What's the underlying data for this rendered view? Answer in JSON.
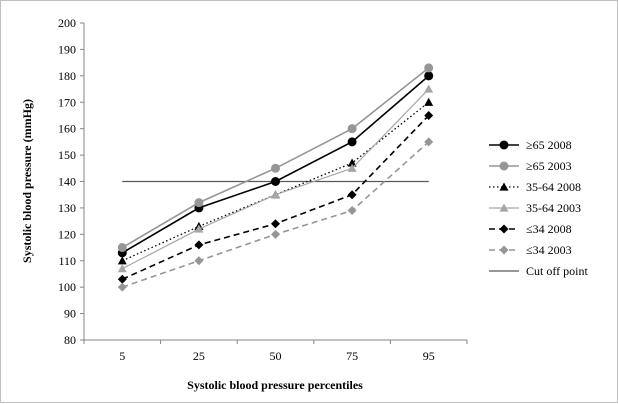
{
  "chart_data": {
    "type": "line",
    "title": "",
    "xlabel": "Systolic blood pressure percentiles",
    "ylabel": "Systolic blood pressure (mmHg)",
    "categories": [
      "5",
      "25",
      "50",
      "75",
      "95"
    ],
    "ylim": [
      80,
      200
    ],
    "yticks": [
      80,
      90,
      100,
      110,
      120,
      130,
      140,
      150,
      160,
      170,
      180,
      190,
      200
    ],
    "grid": false,
    "legend_position": "right",
    "series": [
      {
        "name": "≥65 2008",
        "values": [
          113,
          130,
          140,
          155,
          180
        ],
        "color": "#000000",
        "line": "solid",
        "marker": "circle"
      },
      {
        "name": "≥65 2003",
        "values": [
          115,
          132,
          145,
          160,
          183
        ],
        "color": "#969696",
        "line": "solid",
        "marker": "circle"
      },
      {
        "name": "35-64 2008",
        "values": [
          110,
          123,
          135,
          147,
          170
        ],
        "color": "#000000",
        "line": "dotted",
        "marker": "triangle"
      },
      {
        "name": "35-64 2003",
        "values": [
          107,
          122,
          135,
          145,
          175
        ],
        "color": "#a6a6a6",
        "line": "solid-thin",
        "marker": "triangle"
      },
      {
        "name": "≤34 2008",
        "values": [
          103,
          116,
          124,
          135,
          165
        ],
        "color": "#000000",
        "line": "dashed",
        "marker": "diamond"
      },
      {
        "name": "≤34 2003",
        "values": [
          100,
          110,
          120,
          129,
          155
        ],
        "color": "#969696",
        "line": "dashed",
        "marker": "diamond"
      }
    ],
    "reference_lines": [
      {
        "name": "Cut off point",
        "value": 140,
        "color": "#595959"
      }
    ]
  }
}
